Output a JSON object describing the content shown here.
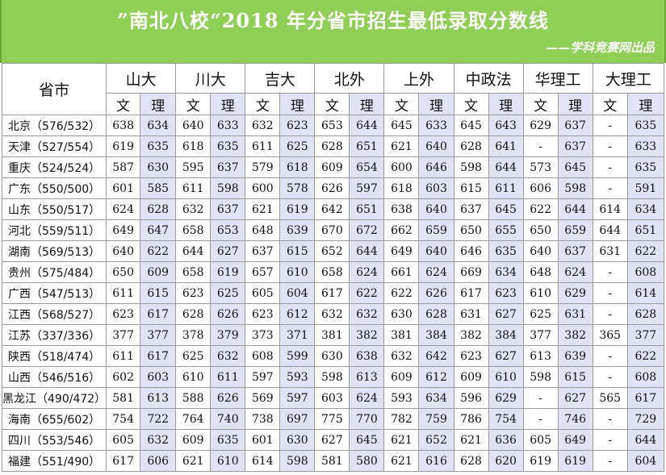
{
  "header": {
    "title": "”南北八校“2018 年分省市招生最低录取分数线",
    "credit": "——学科竞赛网出品"
  },
  "table": {
    "province_header": "省市",
    "schools": [
      "山大",
      "川大",
      "吉大",
      "北外",
      "上外",
      "中政法",
      "华理工",
      "大理工"
    ],
    "subheaders": [
      "文",
      "理"
    ],
    "rows": [
      {
        "province": "北京（576/532）",
        "scores": [
          "638",
          "634",
          "640",
          "633",
          "632",
          "623",
          "653",
          "644",
          "645",
          "633",
          "645",
          "643",
          "629",
          "637",
          "-",
          "635"
        ]
      },
      {
        "province": "天津（527/554）",
        "scores": [
          "619",
          "635",
          "618",
          "635",
          "611",
          "625",
          "628",
          "651",
          "621",
          "640",
          "628",
          "641",
          "-",
          "637",
          "-",
          "633"
        ]
      },
      {
        "province": "重庆（524/524）",
        "scores": [
          "587",
          "630",
          "595",
          "637",
          "579",
          "618",
          "609",
          "654",
          "600",
          "646",
          "598",
          "644",
          "573",
          "645",
          "-",
          "635"
        ]
      },
      {
        "province": "广东（550/500）",
        "scores": [
          "601",
          "585",
          "611",
          "598",
          "600",
          "578",
          "626",
          "597",
          "618",
          "603",
          "615",
          "611",
          "606",
          "598",
          "-",
          "591"
        ]
      },
      {
        "province": "山东（550/517）",
        "scores": [
          "624",
          "628",
          "632",
          "637",
          "621",
          "619",
          "642",
          "651",
          "638",
          "640",
          "637",
          "645",
          "622",
          "644",
          "614",
          "634"
        ]
      },
      {
        "province": "河北（559/511）",
        "scores": [
          "649",
          "647",
          "658",
          "653",
          "648",
          "639",
          "670",
          "672",
          "662",
          "659",
          "650",
          "655",
          "650",
          "659",
          "644",
          "651"
        ]
      },
      {
        "province": "湖南（569/513）",
        "scores": [
          "640",
          "622",
          "644",
          "627",
          "637",
          "615",
          "652",
          "644",
          "649",
          "640",
          "646",
          "635",
          "640",
          "637",
          "631",
          "622"
        ]
      },
      {
        "province": "贵州（575/484）",
        "scores": [
          "650",
          "609",
          "658",
          "619",
          "657",
          "610",
          "658",
          "624",
          "661",
          "624",
          "669",
          "634",
          "648",
          "624",
          "-",
          "608"
        ]
      },
      {
        "province": "广西（547/513）",
        "scores": [
          "611",
          "615",
          "623",
          "625",
          "605",
          "604",
          "617",
          "622",
          "622",
          "626",
          "617",
          "623",
          "610",
          "629",
          "-",
          "614"
        ]
      },
      {
        "province": "江西（568/527）",
        "scores": [
          "623",
          "617",
          "628",
          "626",
          "623",
          "612",
          "632",
          "632",
          "630",
          "628",
          "631",
          "627",
          "625",
          "631",
          "-",
          "628"
        ]
      },
      {
        "province": "江苏（337/336）",
        "scores": [
          "377",
          "377",
          "378",
          "379",
          "373",
          "371",
          "381",
          "382",
          "381",
          "384",
          "382",
          "384",
          "377",
          "382",
          "365",
          "377"
        ]
      },
      {
        "province": "陕西（518/474）",
        "scores": [
          "611",
          "617",
          "625",
          "632",
          "608",
          "599",
          "630",
          "638",
          "632",
          "642",
          "623",
          "627",
          "613",
          "639",
          "-",
          "622"
        ]
      },
      {
        "province": "山西（546/516）",
        "scores": [
          "602",
          "603",
          "610",
          "611",
          "597",
          "593",
          "598",
          "613",
          "609",
          "612",
          "609",
          "610",
          "598",
          "615",
          "-",
          "608"
        ]
      },
      {
        "province": "黑龙江（490/472）",
        "scores": [
          "581",
          "613",
          "588",
          "626",
          "569",
          "597",
          "603",
          "624",
          "593",
          "634",
          "596",
          "629",
          "-",
          "627",
          "565",
          "617"
        ]
      },
      {
        "province": "海南（655/602）",
        "scores": [
          "754",
          "722",
          "764",
          "740",
          "738",
          "697",
          "775",
          "770",
          "782",
          "759",
          "786",
          "754",
          "-",
          "746",
          "-",
          "729"
        ]
      },
      {
        "province": "四川（553/546）",
        "scores": [
          "605",
          "632",
          "609",
          "635",
          "601",
          "630",
          "627",
          "645",
          "621",
          "652",
          "621",
          "636",
          "605",
          "649",
          "-",
          "644"
        ]
      },
      {
        "province": "福建（551/490）",
        "scores": [
          "617",
          "606",
          "621",
          "610",
          "614",
          "598",
          "581",
          "580",
          "621",
          "616",
          "628",
          "620",
          "619",
          "619",
          "-",
          "604"
        ]
      }
    ]
  }
}
